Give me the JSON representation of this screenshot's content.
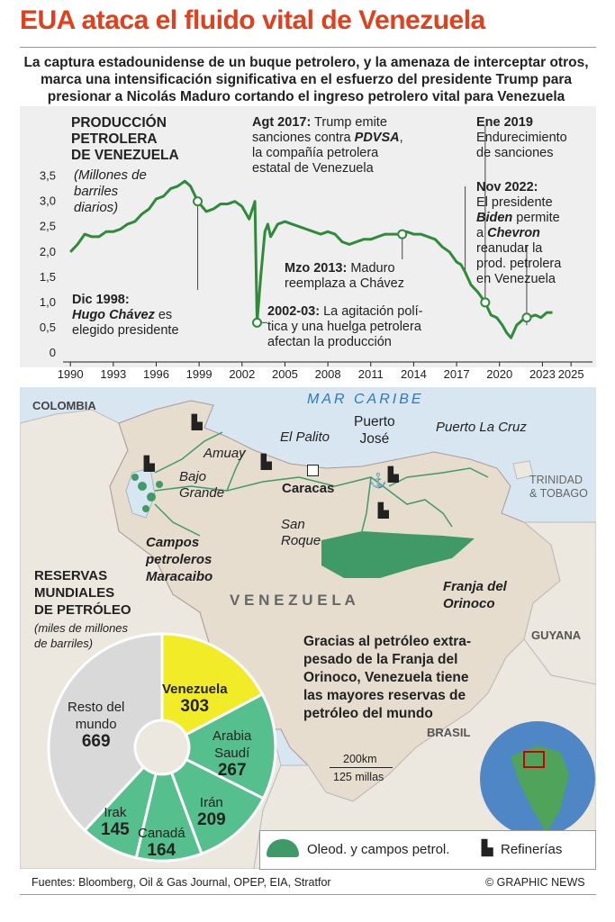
{
  "header": {
    "title": "EUA ataca el fluido vital de Venezuela",
    "subtitle": "La captura estadounidense de un buque petrolero, y la amenaza de interceptar otros, marca una intensificación significativa en el esfuerzo del presidente Trump para presionar a Nicolás Maduro cortando el ingreso petrolero vital para Venezuela"
  },
  "colors": {
    "accent": "#e2401c",
    "line": "#2e8b3a",
    "green": "#56bf8e",
    "yellow": "#f2ec28",
    "gray": "#d9d9d9",
    "map_land": "#ece7df",
    "sea": "#d8e6f2"
  },
  "chart_title": {
    "l1": "PRODUCCIÓN",
    "l2": "PETROLERA",
    "l3": "DE VENEZUELA",
    "u1": "(Millones de",
    "u2": "barriles",
    "u3": "diarios)"
  },
  "annotations": {
    "a1998": {
      "h": "Dic 1998:",
      "b": "Hugo Chávez",
      "t1": " es",
      "t2": "elegido presidente"
    },
    "a2002": {
      "h": "2002-03:",
      "t1": " La agitación polí-",
      "t2": "tica y una huelga petrolera",
      "t3": "afectan la producción"
    },
    "a2017": {
      "h": "Agt 2017:",
      "t1": " Trump emite",
      "t2": "sanciones contra ",
      "b": "PDVSA",
      "t3": ",",
      "t4": "la compañía petrolera",
      "t5": "estatal de Venezuela"
    },
    "a2013": {
      "h": "Mzo 2013:",
      "t1": " Maduro",
      "t2": "reemplaza a Chávez"
    },
    "a2019": {
      "h": "Ene 2019",
      "t1": "Endurecimiento",
      "t2": "de sanciones"
    },
    "a2022": {
      "h": "Nov 2022:",
      "t1": "El presidente",
      "b1": "Biden",
      "t2": " permite",
      "t3": "a ",
      "b2": "Chevron",
      "t4": "reanudar la",
      "t5": "prod. petrolera",
      "t6": "en Venezuela"
    }
  },
  "chart_data": {
    "type": "line",
    "x": [
      1990,
      1990.5,
      1991,
      1991.5,
      1992,
      1992.5,
      1993,
      1993.5,
      1994,
      1994.5,
      1995,
      1995.5,
      1996,
      1996.5,
      1997,
      1997.5,
      1998,
      1998.4,
      1998.9,
      1999.5,
      2000,
      2000.5,
      2001,
      2001.5,
      2002,
      2002.5,
      2002.9,
      2003.05,
      2003.3,
      2003.6,
      2003.8,
      2004,
      2004.5,
      2005,
      2005.5,
      2006,
      2006.5,
      2007,
      2007.5,
      2008,
      2008.5,
      2009,
      2009.5,
      2010,
      2010.5,
      2011,
      2011.5,
      2012,
      2012.5,
      2013,
      2013.2,
      2013.5,
      2014,
      2014.5,
      2015,
      2015.5,
      2016,
      2016.5,
      2017,
      2017.3,
      2017.6,
      2018,
      2018.5,
      2019,
      2019.4,
      2019.8,
      2020.2,
      2020.5,
      2020.8,
      2021.2,
      2021.6,
      2022,
      2022.5,
      2022.9,
      2023.3,
      2023.7
    ],
    "y": [
      2.0,
      2.15,
      2.35,
      2.3,
      2.3,
      2.4,
      2.4,
      2.45,
      2.55,
      2.6,
      2.75,
      2.85,
      3.05,
      3.1,
      3.25,
      3.3,
      3.4,
      3.3,
      3.0,
      2.8,
      2.85,
      2.95,
      2.95,
      3.0,
      2.9,
      2.65,
      3.0,
      0.6,
      1.5,
      2.4,
      2.55,
      2.3,
      2.55,
      2.6,
      2.55,
      2.5,
      2.45,
      2.4,
      2.35,
      2.4,
      2.35,
      2.2,
      2.15,
      2.2,
      2.25,
      2.25,
      2.3,
      2.35,
      2.35,
      2.35,
      2.35,
      2.4,
      2.35,
      2.35,
      2.3,
      2.25,
      2.1,
      2.0,
      1.8,
      1.75,
      1.6,
      1.35,
      1.2,
      1.0,
      0.75,
      0.7,
      0.55,
      0.4,
      0.3,
      0.55,
      0.65,
      0.7,
      0.75,
      0.7,
      0.8,
      0.8
    ],
    "xticks": [
      "1990",
      "1993",
      "1996",
      "1999",
      "2002",
      "2005",
      "2008",
      "2011",
      "2014",
      "2017",
      "2020",
      "2023",
      "2025"
    ],
    "xtick_vals": [
      1990,
      1993,
      1996,
      1999,
      2002,
      2005,
      2008,
      2011,
      2014,
      2017,
      2020,
      2023,
      2025
    ],
    "yticks": [
      "0",
      "0,5",
      "1,0",
      "1,5",
      "2,0",
      "2,5",
      "3,0",
      "3,5"
    ],
    "ytick_vals": [
      0,
      0.5,
      1.0,
      1.5,
      2.0,
      2.5,
      3.0,
      3.5
    ],
    "xlim": [
      1989.8,
      2026.5
    ],
    "ylim": [
      0,
      3.6
    ],
    "markers": [
      1998.9,
      2013.2,
      2019.0,
      2021.9
    ]
  },
  "map": {
    "sea": "MAR CARIBE",
    "colombia": "COLOMBIA",
    "trinidad1": "TRINIDAD",
    "trinidad2": "& TOBAGO",
    "venezuela": "V E N E Z U E L A",
    "guyana": "GUYANA",
    "brasil": "BRASIL",
    "amuay": "Amuay",
    "elpalito": "El Palito",
    "puerto1": "Puerto",
    "puerto2": "José",
    "puertolacruz": "Puerto La Cruz",
    "bajo1": "Bajo",
    "bajo2": "Grande",
    "caracas": "Caracas",
    "sanroque1": "San",
    "sanroque2": "Roque",
    "campos1": "Campos",
    "campos2": "petroleros",
    "campos3": "Maracaibo",
    "franja1": "Franja del",
    "franja2": "Orinoco",
    "scale_km": "200km",
    "scale_mi": "125 millas"
  },
  "reserves": {
    "t1": "RESERVAS",
    "t2": "MUNDIALES",
    "t3": "DE PETRÓLEO",
    "u1": "(miles de millones",
    "u2": "de barriles)",
    "note1": "Gracias al petróleo extra-",
    "note2": "pesado de la Franja del",
    "note3": "Orinoco, Venezuela tiene",
    "note4": "las mayores reservas de",
    "note5": "petróleo del mundo"
  },
  "chart_data_pie": {
    "type": "pie",
    "slices": [
      {
        "name": "Venezuela",
        "value": 303,
        "color": "#f2ec28"
      },
      {
        "name": "Arabia Saudí",
        "value": 267,
        "color": "#56bf8e"
      },
      {
        "name": "Irán",
        "value": 209,
        "color": "#56bf8e"
      },
      {
        "name": "Canadá",
        "value": 164,
        "color": "#56bf8e"
      },
      {
        "name": "Irak",
        "value": 145,
        "color": "#56bf8e"
      },
      {
        "name": "Resto del mundo",
        "value": 669,
        "color": "#d9d9d9"
      }
    ]
  },
  "pie_labels": {
    "ven_n": "Venezuela",
    "ven_v": "303",
    "ara_n1": "Arabia",
    "ara_n2": "Saudí",
    "ara_v": "267",
    "ira_n": "Irán",
    "ira_v": "209",
    "can_n": "Canadá",
    "can_v": "164",
    "irk_n": "Irak",
    "irk_v": "145",
    "rest_n1": "Resto del",
    "rest_n2": "mundo",
    "rest_v": "669"
  },
  "legend": {
    "pipes": "Oleod. y campos petrol.",
    "refineries": "Refinerías"
  },
  "footer": {
    "sources": "Fuentes: Bloomberg, Oil & Gas Journal, OPEP, EIA, Stratfor",
    "credit": "© GRAPHIC NEWS"
  }
}
